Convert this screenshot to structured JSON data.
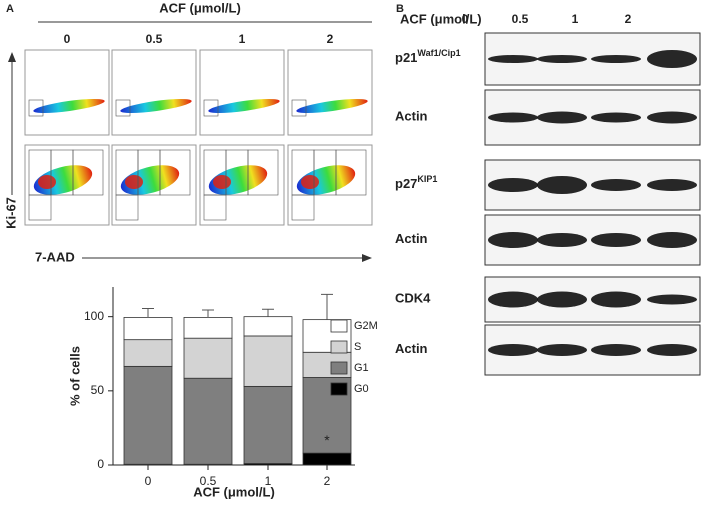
{
  "panel_a": {
    "label": "A",
    "flow": {
      "title": "ACF (μmol/L)",
      "concentrations": [
        "0",
        "0.5",
        "1",
        "2"
      ],
      "y_label": "Ki-67",
      "x_label": "7-AAD"
    }
  },
  "chart_data": {
    "type": "bar",
    "stacked": true,
    "y_label": "% of cells",
    "x_label": "ACF (μmol/L)",
    "categories": [
      "0",
      "0.5",
      "1",
      "2"
    ],
    "series": [
      {
        "name": "G0",
        "color": "#000000",
        "values": [
          0.5,
          0.5,
          1,
          8
        ],
        "errors": [
          0,
          0,
          0,
          4
        ]
      },
      {
        "name": "G1",
        "color": "#7f7f7f",
        "values": [
          66,
          58,
          52,
          51
        ],
        "errors": [
          3,
          5,
          10,
          7
        ]
      },
      {
        "name": "S",
        "color": "#d3d3d3",
        "values": [
          18,
          27,
          34,
          17
        ],
        "errors": [
          4,
          4,
          0,
          7
        ]
      },
      {
        "name": "G2M",
        "color": "#ffffff",
        "values": [
          15,
          14,
          13,
          22
        ],
        "errors": [
          6,
          5,
          5,
          17
        ]
      }
    ],
    "ylim": [
      0,
      120
    ],
    "yticks": [
      0,
      50,
      100
    ],
    "annotation": "*"
  },
  "panel_b": {
    "label": "B",
    "title": "ACF (μmol/L)",
    "concentrations": [
      "0",
      "0.5",
      "1",
      "2"
    ],
    "blots": [
      {
        "name": "p21",
        "superscript": "Waf1/Cip1"
      },
      {
        "name": "Actin"
      },
      {
        "name": "p27",
        "superscript": "KIP1"
      },
      {
        "name": "Actin"
      },
      {
        "name": "CDK4"
      },
      {
        "name": "Actin"
      }
    ]
  }
}
